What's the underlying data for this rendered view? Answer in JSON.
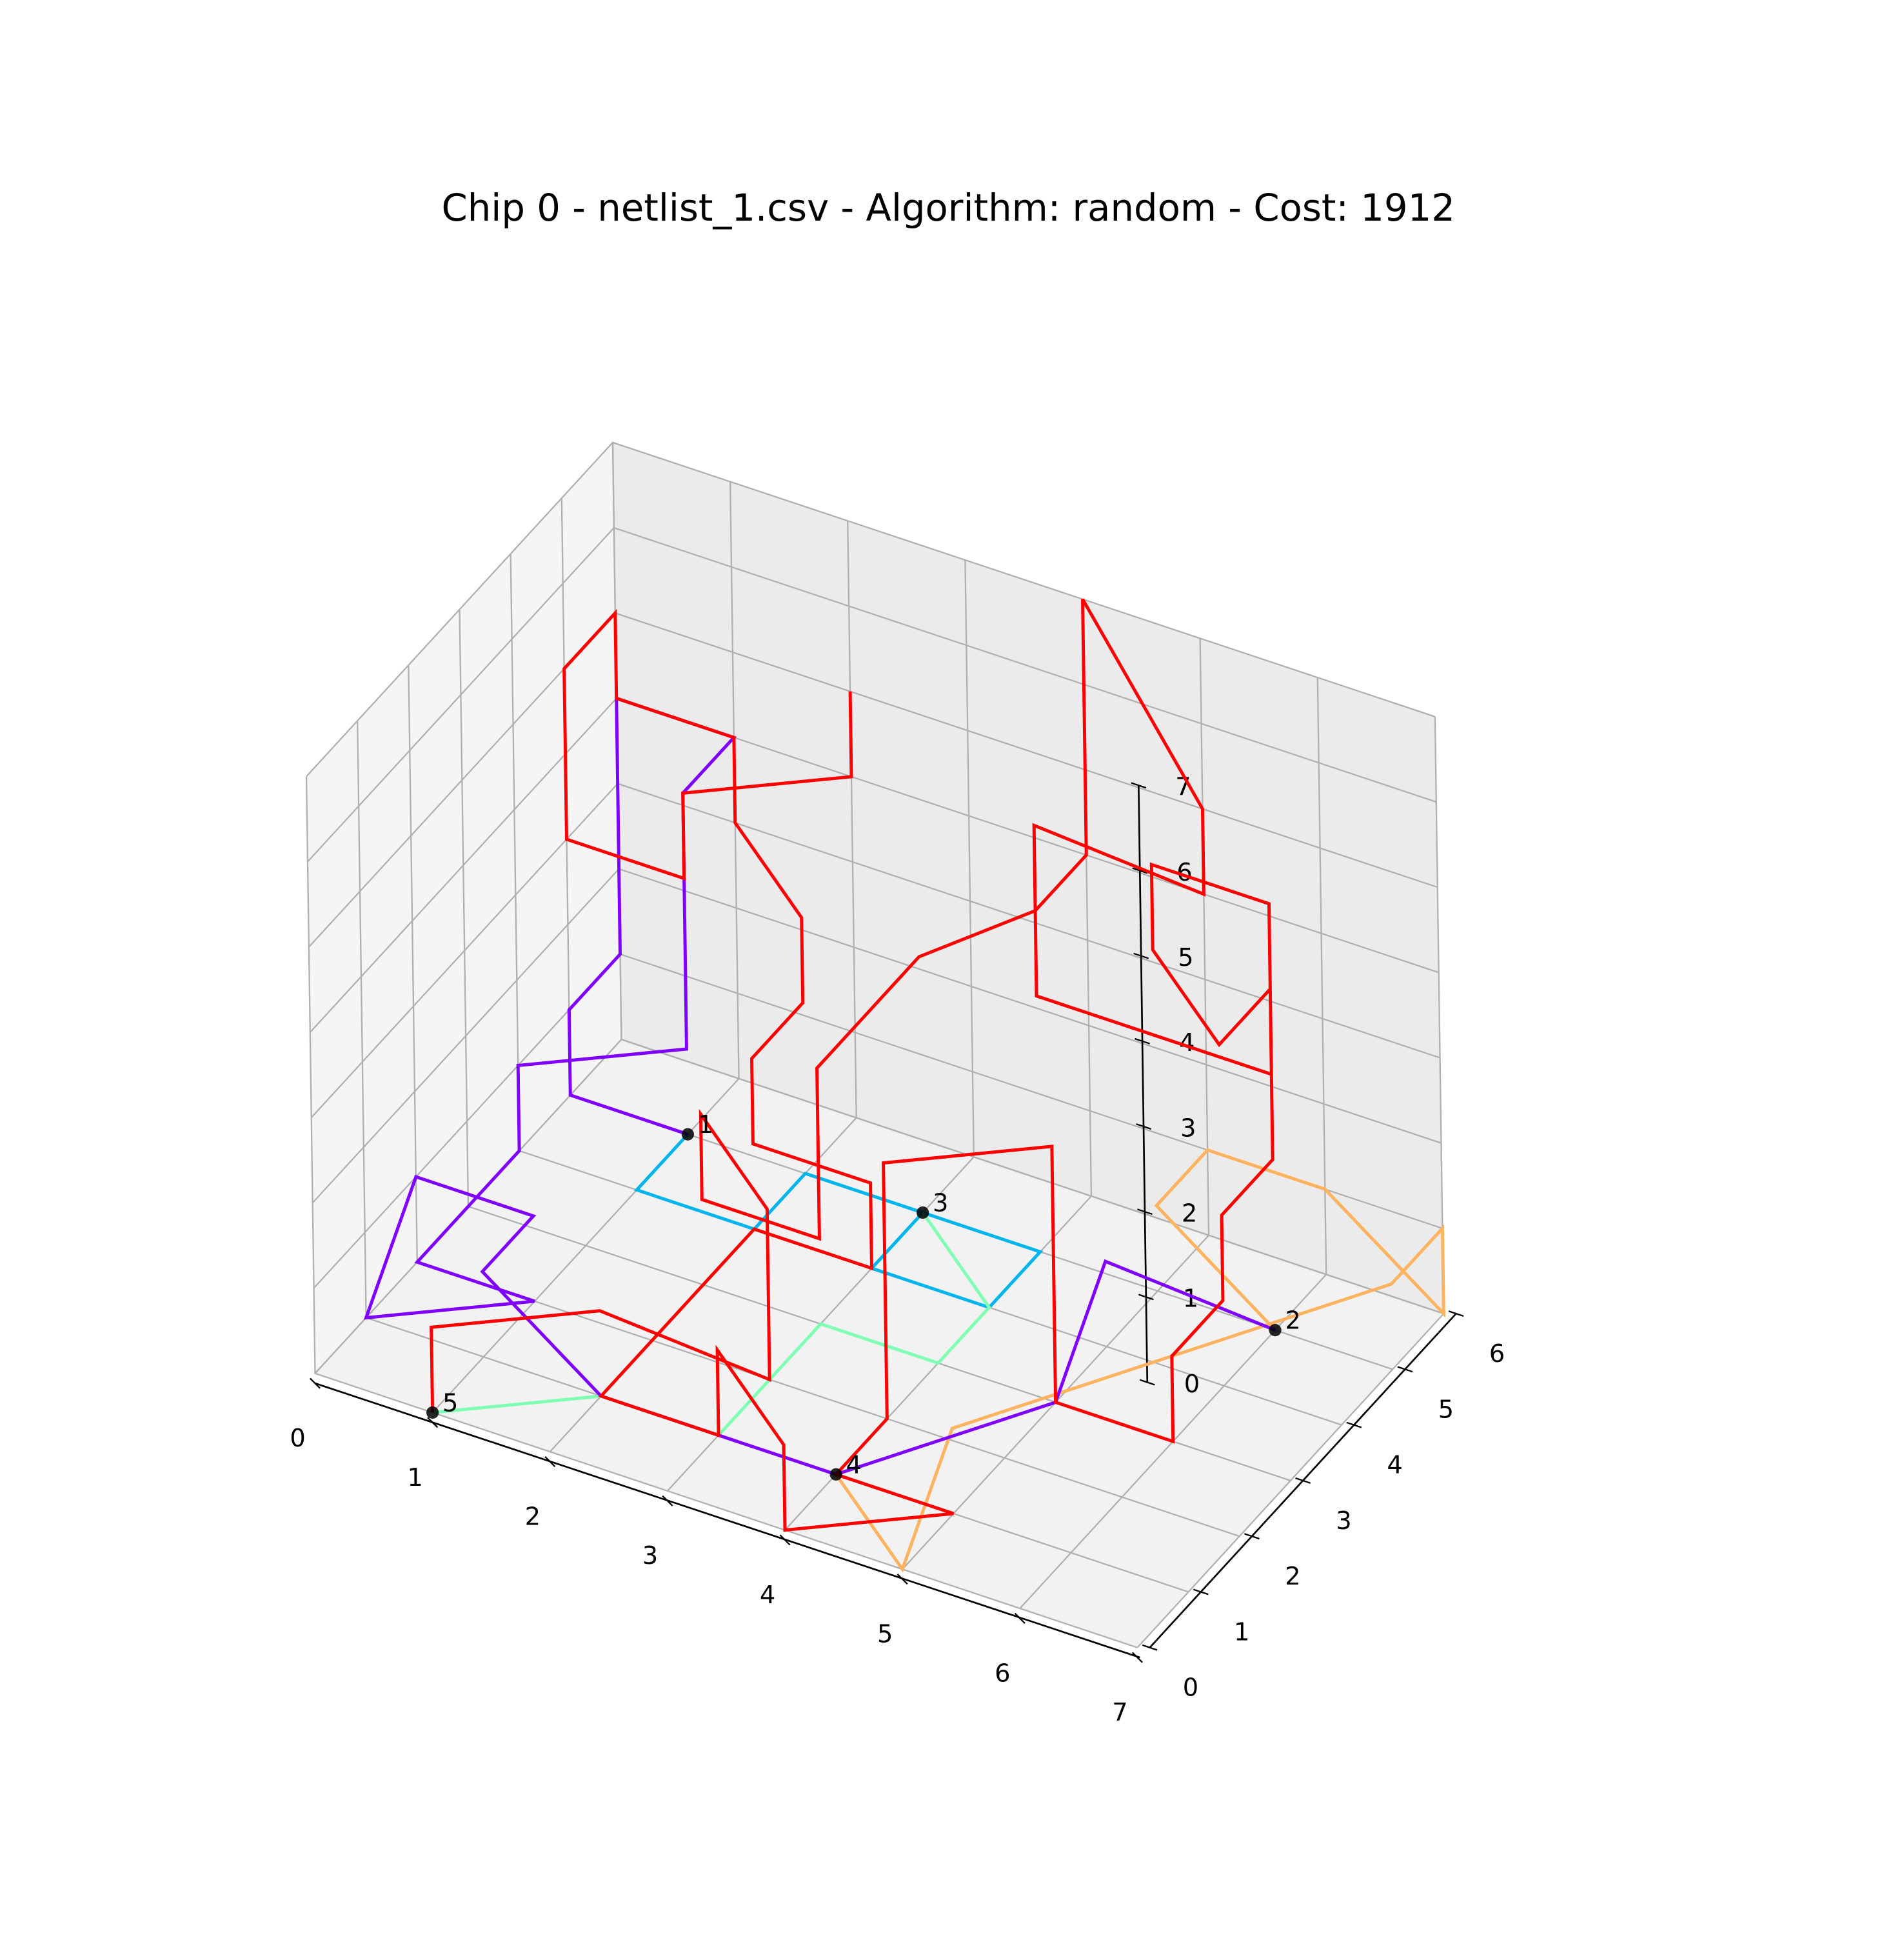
{
  "chart_data": {
    "type": "line",
    "projection": "3d",
    "title": "Chip 0 - netlist_1.csv - Algorithm: random - Cost: 1912",
    "xlabel": "",
    "ylabel": "",
    "zlabel": "",
    "xlim": [
      0,
      7
    ],
    "ylim": [
      0,
      6
    ],
    "zlim": [
      0,
      7
    ],
    "xticks": [
      "0",
      "1",
      "2",
      "3",
      "4",
      "5",
      "6",
      "7"
    ],
    "yticks": [
      "0",
      "1",
      "2",
      "3",
      "4",
      "5",
      "6"
    ],
    "zticks": [
      "0",
      "1",
      "2",
      "3",
      "4",
      "5",
      "6",
      "7"
    ],
    "grid": true,
    "legend": "none",
    "gates": [
      {
        "label": "1",
        "x": 1,
        "y": 5,
        "z": 0
      },
      {
        "label": "2",
        "x": 6,
        "y": 5,
        "z": 0
      },
      {
        "label": "3",
        "x": 3,
        "y": 5,
        "z": 0
      },
      {
        "label": "4",
        "x": 4,
        "y": 1,
        "z": 0
      },
      {
        "label": "5",
        "x": 1,
        "y": 0,
        "z": 0
      }
    ],
    "series": [
      {
        "color": "#00b5eb",
        "points": [
          [
            1,
            5,
            0
          ],
          [
            1,
            4,
            0
          ],
          [
            2,
            4,
            0
          ],
          [
            2,
            5,
            0
          ],
          [
            4,
            5,
            0
          ],
          [
            4,
            4,
            0
          ],
          [
            3,
            4,
            0
          ],
          [
            3,
            5,
            0
          ]
        ]
      },
      {
        "color": "#80ffb4",
        "points": [
          [
            1,
            0,
            0
          ],
          [
            2,
            1,
            0
          ],
          [
            3,
            1,
            0
          ],
          [
            3,
            3,
            0
          ],
          [
            4,
            3,
            0
          ],
          [
            4,
            4,
            0
          ],
          [
            3,
            5,
            0
          ]
        ]
      },
      {
        "color": "#ffb360",
        "points": [
          [
            4,
            1,
            0
          ],
          [
            5,
            0,
            0
          ],
          [
            5,
            1,
            1
          ],
          [
            6,
            3,
            1
          ],
          [
            7,
            5,
            1
          ],
          [
            7,
            6,
            1
          ],
          [
            7,
            6,
            0
          ],
          [
            6,
            6,
            1
          ],
          [
            5,
            6,
            1
          ],
          [
            5,
            5,
            1
          ],
          [
            6,
            5,
            0
          ]
        ]
      },
      {
        "color": "#8000ff",
        "points": [
          [
            1,
            5,
            0
          ],
          [
            0,
            5,
            0
          ],
          [
            0,
            5,
            1
          ],
          [
            0,
            6,
            1
          ],
          [
            0,
            6,
            4
          ],
          [
            1,
            6,
            4
          ],
          [
            1,
            5,
            4
          ],
          [
            1,
            5,
            1
          ],
          [
            0,
            4,
            1
          ],
          [
            0,
            4,
            0
          ],
          [
            0,
            3,
            0
          ],
          [
            0,
            2,
            0
          ],
          [
            1,
            2,
            0
          ],
          [
            0,
            1,
            0
          ],
          [
            0,
            2,
            1
          ],
          [
            1,
            2,
            1
          ],
          [
            1,
            1,
            1
          ],
          [
            2,
            1,
            0
          ],
          [
            4,
            1,
            0
          ],
          [
            5,
            3,
            0
          ],
          [
            5,
            4,
            1
          ],
          [
            6,
            5,
            0
          ]
        ]
      },
      {
        "color": "#ff0000",
        "points": [
          [
            1,
            0,
            0
          ],
          [
            1,
            0,
            1
          ],
          [
            2,
            1,
            1
          ],
          [
            3,
            2,
            0
          ],
          [
            3,
            2,
            2
          ],
          [
            2,
            3,
            2
          ],
          [
            2,
            3,
            1
          ],
          [
            3,
            3,
            1
          ],
          [
            3,
            3,
            3
          ],
          [
            3,
            5,
            3
          ],
          [
            4,
            5,
            4
          ],
          [
            4,
            6,
            4
          ],
          [
            4,
            6,
            7
          ],
          [
            5,
            6,
            5
          ],
          [
            5,
            6,
            4
          ],
          [
            4,
            5,
            5
          ],
          [
            4,
            5,
            3
          ],
          [
            6,
            5,
            3
          ],
          [
            6,
            5,
            4
          ],
          [
            6,
            4,
            4
          ],
          [
            5,
            5,
            4
          ],
          [
            5,
            5,
            5
          ],
          [
            6,
            5,
            5
          ],
          [
            6,
            5,
            2
          ],
          [
            6,
            4,
            2
          ],
          [
            6,
            4,
            1
          ],
          [
            6,
            3,
            1
          ],
          [
            6,
            3,
            0
          ],
          [
            5,
            3,
            0
          ],
          [
            5,
            3,
            3
          ],
          [
            4,
            2,
            3
          ],
          [
            4,
            2,
            0
          ],
          [
            4,
            1,
            0
          ],
          [
            5,
            1,
            0
          ],
          [
            4,
            0,
            0
          ],
          [
            4,
            0,
            1
          ],
          [
            3,
            1,
            1
          ],
          [
            3,
            1,
            0
          ],
          [
            2,
            1,
            0
          ],
          [
            2,
            2,
            0
          ],
          [
            2,
            4,
            0
          ],
          [
            3,
            4,
            0
          ],
          [
            3,
            4,
            1
          ],
          [
            2,
            4,
            1
          ],
          [
            2,
            4,
            2
          ],
          [
            2,
            5,
            2
          ],
          [
            2,
            5,
            3
          ],
          [
            1,
            6,
            3
          ],
          [
            1,
            6,
            4
          ],
          [
            0,
            6,
            4
          ],
          [
            0,
            6,
            5
          ],
          [
            0,
            5,
            5
          ],
          [
            0,
            5,
            3
          ],
          [
            1,
            5,
            3
          ],
          [
            1,
            5,
            4
          ],
          [
            2,
            6,
            4
          ],
          [
            2,
            6,
            5
          ]
        ]
      }
    ]
  }
}
